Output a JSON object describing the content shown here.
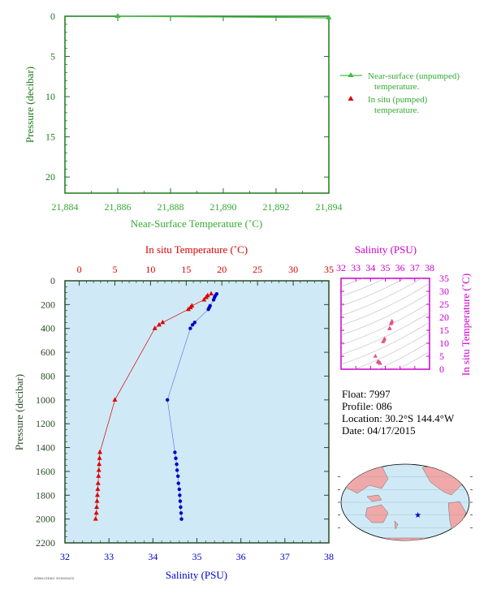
{
  "colors": {
    "top_axes": "#1a7a1a",
    "top_labels": "#33aa33",
    "unpumped": "#44bb44",
    "temperature": "#dd0000",
    "salinity": "#0000cc",
    "main_axes": "#2a4a2a",
    "ts_axes": "#cc00cc",
    "panel_bg": "#cfeaf6",
    "ts_points": "#e6508c"
  },
  "float_info": {
    "float_line": "Float: 7997",
    "profile_line": "Profile: 086",
    "location_line": "Location: 30.2°S 144.4°W",
    "date_line": "Date: 04/17/2015"
  },
  "footer": "AOML/GDAC 2015/04/20",
  "chart_data": [
    {
      "type": "line",
      "title": "",
      "xlabel": "Near-Surface Temperature (˚C)",
      "ylabel": "Pressure (decibar)",
      "xlim": [
        21.884,
        21.894
      ],
      "ylim": [
        22,
        0
      ],
      "x_ticks": [
        "21,884",
        "21,886",
        "21,888",
        "21,890",
        "21,892",
        "21,894"
      ],
      "y_ticks": [
        0,
        5,
        10,
        15,
        20
      ],
      "legend_placement": "right",
      "series": [
        {
          "name": "Near-surface (unpumped) temperature.",
          "legend_line1": "Near-surface (unpumped)",
          "legend_line2": "temperature.",
          "x": [
            21.886,
            21.894
          ],
          "y": [
            0.0,
            0.2
          ]
        },
        {
          "name": "In situ (pumped) temperature.",
          "legend_line1": "In situ (pumped)",
          "legend_line2": "temperature.",
          "x": [],
          "y": []
        }
      ]
    },
    {
      "type": "line",
      "title": "",
      "top_xlabel": "In situ Temperature (˚C)",
      "bottom_xlabel": "Salinity (PSU)",
      "ylabel": "Pressure (decibar)",
      "temp_lim": [
        -2,
        35
      ],
      "temp_ticks": [
        0,
        5,
        10,
        15,
        20,
        25,
        30,
        35
      ],
      "sal_lim": [
        32,
        38
      ],
      "sal_ticks": [
        32,
        33,
        34,
        35,
        36,
        37,
        38
      ],
      "ylim": [
        2200,
        0
      ],
      "y_ticks": [
        0,
        200,
        400,
        600,
        800,
        1000,
        1200,
        1400,
        1600,
        1800,
        2000,
        2200
      ],
      "series": [
        {
          "name": "In situ Temperature",
          "pressure": [
            110,
            125,
            140,
            160,
            210,
            225,
            240,
            350,
            370,
            400,
            1000,
            1440,
            1490,
            1540,
            1590,
            1640,
            1700,
            1750,
            1800,
            1850,
            1900,
            1950,
            2000
          ],
          "values": [
            18.5,
            18.0,
            17.8,
            17.5,
            15.8,
            15.6,
            15.3,
            11.7,
            11.2,
            10.6,
            5.0,
            2.9,
            2.85,
            2.8,
            2.75,
            2.7,
            2.65,
            2.6,
            2.55,
            2.5,
            2.45,
            2.4,
            2.3
          ]
        },
        {
          "name": "Salinity",
          "pressure": [
            110,
            125,
            140,
            160,
            210,
            225,
            240,
            350,
            370,
            400,
            1000,
            1440,
            1490,
            1540,
            1590,
            1640,
            1700,
            1750,
            1800,
            1850,
            1900,
            1950,
            2000
          ],
          "values": [
            35.45,
            35.42,
            35.4,
            35.38,
            35.3,
            35.28,
            35.26,
            34.95,
            34.9,
            34.85,
            34.33,
            34.5,
            34.52,
            34.54,
            34.55,
            34.57,
            34.58,
            34.6,
            34.61,
            34.62,
            34.63,
            34.64,
            34.65
          ]
        }
      ]
    },
    {
      "type": "scatter",
      "title": "",
      "xlabel": "Salinity (PSU)",
      "ylabel": "In situ Temperature (˚C)",
      "xlim": [
        32,
        38
      ],
      "x_ticks": [
        32,
        33,
        34,
        35,
        36,
        37,
        38
      ],
      "ylim": [
        0,
        35
      ],
      "y_ticks": [
        0,
        5,
        10,
        15,
        20,
        25,
        30,
        35
      ],
      "points": [
        [
          35.45,
          18.5
        ],
        [
          35.42,
          18.0
        ],
        [
          35.38,
          17.5
        ],
        [
          35.3,
          15.8
        ],
        [
          35.28,
          15.6
        ],
        [
          34.95,
          11.7
        ],
        [
          34.9,
          11.2
        ],
        [
          34.85,
          10.6
        ],
        [
          34.33,
          5.0
        ],
        [
          34.5,
          2.9
        ],
        [
          34.55,
          2.75
        ],
        [
          34.6,
          2.6
        ],
        [
          34.65,
          2.3
        ]
      ]
    }
  ],
  "map": {
    "marker_lat": -30.2,
    "marker_lon": -144.4
  }
}
